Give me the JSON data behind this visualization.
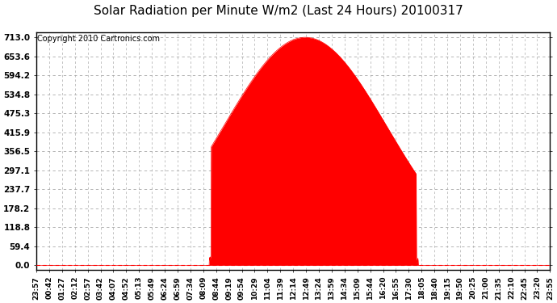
{
  "title": "Solar Radiation per Minute W/m2 (Last 24 Hours) 20100317",
  "copyright": "Copyright 2010 Cartronics.com",
  "y_ticks": [
    0.0,
    59.4,
    118.8,
    178.2,
    237.7,
    297.1,
    356.5,
    415.9,
    475.3,
    534.8,
    594.2,
    653.6,
    713.0
  ],
  "y_max": 713.0,
  "y_min": 0.0,
  "fill_color": "#FF0000",
  "line_color": "#CC0000",
  "bg_color": "#FFFFFF",
  "plot_bg_color": "#FFFFFF",
  "grid_color": "#AAAAAA",
  "zero_line_color": "#FF0000",
  "title_fontsize": 11,
  "copyright_fontsize": 7,
  "x_tick_fontsize": 6.5,
  "y_tick_fontsize": 7.5,
  "x_labels": [
    "23:57",
    "00:42",
    "01:27",
    "02:12",
    "02:57",
    "03:42",
    "04:07",
    "04:52",
    "05:13",
    "05:49",
    "06:24",
    "06:59",
    "07:34",
    "08:09",
    "08:44",
    "09:19",
    "09:54",
    "10:29",
    "11:04",
    "11:39",
    "12:14",
    "12:49",
    "13:24",
    "13:59",
    "14:34",
    "15:09",
    "15:44",
    "16:20",
    "16:55",
    "17:30",
    "18:05",
    "18:40",
    "19:15",
    "19:50",
    "20:25",
    "21:00",
    "21:35",
    "22:10",
    "22:45",
    "23:20",
    "23:55"
  ],
  "peak_minute": 753,
  "sigma": 230,
  "rise_minute": 490,
  "set_minute": 1065,
  "n_points": 1440
}
